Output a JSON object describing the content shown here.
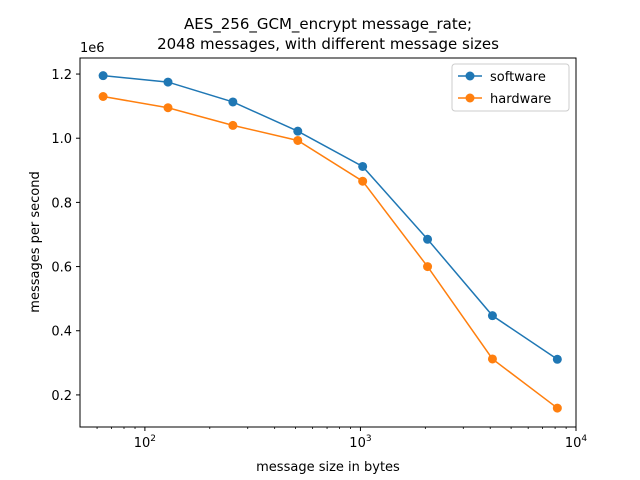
{
  "chart_data": {
    "type": "line",
    "title_line1": "AES_256_GCM_encrypt message_rate;",
    "title_line2": "2048 messages, with different message sizes",
    "xlabel": "message size in bytes",
    "ylabel": "messages per second",
    "y_offset_label": "1e6",
    "x_scale": "log",
    "x_ticks": [
      {
        "value": 100,
        "base": "10",
        "exp": "2"
      },
      {
        "value": 1000,
        "base": "10",
        "exp": "3"
      },
      {
        "value": 10000,
        "base": "10",
        "exp": "4"
      }
    ],
    "y_ticks": [
      "0.2",
      "0.4",
      "0.6",
      "0.8",
      "1.0",
      "1.2"
    ],
    "xlim": [
      50,
      10000
    ],
    "ylim": [
      0.1,
      1.25
    ],
    "x": [
      64,
      128,
      256,
      512,
      1024,
      2048,
      4096,
      8192
    ],
    "series": [
      {
        "name": "software",
        "color": "#1f77b4",
        "values": [
          1.195,
          1.175,
          1.113,
          1.022,
          0.912,
          0.685,
          0.447,
          0.311
        ]
      },
      {
        "name": "hardware",
        "color": "#ff7f0e",
        "values": [
          1.13,
          1.095,
          1.04,
          0.993,
          0.866,
          0.6,
          0.312,
          0.159
        ]
      }
    ],
    "legend_position": "top-right",
    "grid": false
  }
}
